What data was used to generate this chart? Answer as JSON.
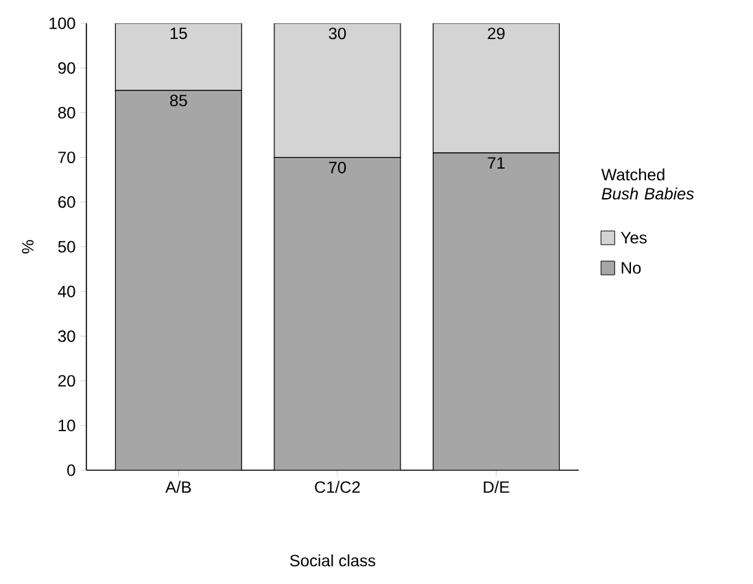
{
  "chart_data": {
    "type": "bar",
    "stacked": true,
    "xlabel": "Social class",
    "ylabel": "%",
    "legend_title": "Watched *Bush Babies*",
    "legend": "right",
    "data_labels": true,
    "categories": [
      "A/B",
      "C1/C2",
      "D/E"
    ],
    "series": [
      {
        "name": "No",
        "color": "#a6a6a6",
        "values": [
          85,
          70,
          71
        ]
      },
      {
        "name": "Yes",
        "color": "#d4d4d4",
        "values": [
          15,
          30,
          29
        ]
      }
    ],
    "ylim": [
      0,
      100
    ],
    "yticks": [
      0,
      10,
      20,
      30,
      40,
      50,
      60,
      70,
      80,
      90,
      100
    ]
  }
}
